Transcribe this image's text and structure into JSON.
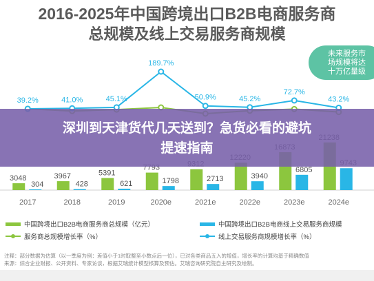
{
  "title": {
    "line1": "2016-2025年中国跨境出口B2B电商服务商",
    "line2": "总规模及线上交易服务商规模"
  },
  "annotation": {
    "text_lines": [
      "未来服务市",
      "场规模将达",
      "十万亿量级"
    ]
  },
  "banner": {
    "line1": "深圳到天津货代几天送到？急货必看的避坑",
    "line2": "提速指南"
  },
  "legend": {
    "bar_total": "中国跨境出口B2B电商服务商总规模（亿元）",
    "bar_online": "中国跨境出口B2B电商线上交易服务商规模",
    "line_total": "服务商总规模增长率（%）",
    "line_online": "线上交易服务商规模增长率（%）"
  },
  "source": {
    "line1": "注释：部分数据为估算（以一季度为例：差值小于1时取整至小数点后一位），已对各类商品五入的增值，增长率的计算均基于精确数值",
    "line2": "来源：综合企业财报、公开资料、专家访谈，根据艾瑞统计模型核算及预估。艾瑞咨询研究院自主研究及绘制。"
  },
  "chart_data": {
    "type": "bar",
    "categories": [
      "2017",
      "2018",
      "2019",
      "2020e",
      "2021e",
      "2022e",
      "2023e",
      "2024e"
    ],
    "series": [
      {
        "name": "中国跨境出口B2B电商服务商总规模（亿元）",
        "kind": "bar",
        "color": "#8cc63e",
        "values": [
          3048,
          3967,
          5391,
          7793,
          9312,
          12220,
          16873,
          21238
        ],
        "labels": [
          "3048",
          "3967",
          "5391",
          "7793",
          "9312",
          "12220",
          "16873",
          "21238"
        ]
      },
      {
        "name": "中国跨境出口B2B电商线上交易服务商规模",
        "kind": "bar",
        "color": "#29b6e6",
        "values": [
          304,
          428,
          621,
          1798,
          2713,
          3940,
          6805,
          9743
        ],
        "labels": [
          "304",
          "428",
          "621",
          "1798",
          "2713",
          "3940",
          "6805",
          "9743"
        ]
      },
      {
        "name": "服务商总规模增长率（%）",
        "kind": "line",
        "color": "#8cc63e",
        "values": [
          39.2,
          30.1,
          35.9,
          44.6,
          19.5,
          31.2,
          38.1,
          26.0
        ],
        "labels": [
          "",
          "",
          "",
          "",
          "",
          "",
          "",
          ""
        ]
      },
      {
        "name": "线上交易服务商规模增长率（%）",
        "kind": "line",
        "color": "#29b6e6",
        "values": [
          39.2,
          41.0,
          45.1,
          189.7,
          50.9,
          45.2,
          72.7,
          43.2
        ],
        "labels": [
          "39.2%",
          "41.0%",
          "45.1%",
          "189.7%",
          "50.9%",
          "45.2%",
          "72.7%",
          "43.2%"
        ]
      }
    ],
    "grid": false,
    "legend_position": "bottom"
  },
  "colors": {
    "bar_total": "#8cc63e",
    "bar_online": "#29b6e6",
    "banner": "#7860aa",
    "bubble": "#5dc3a4"
  }
}
